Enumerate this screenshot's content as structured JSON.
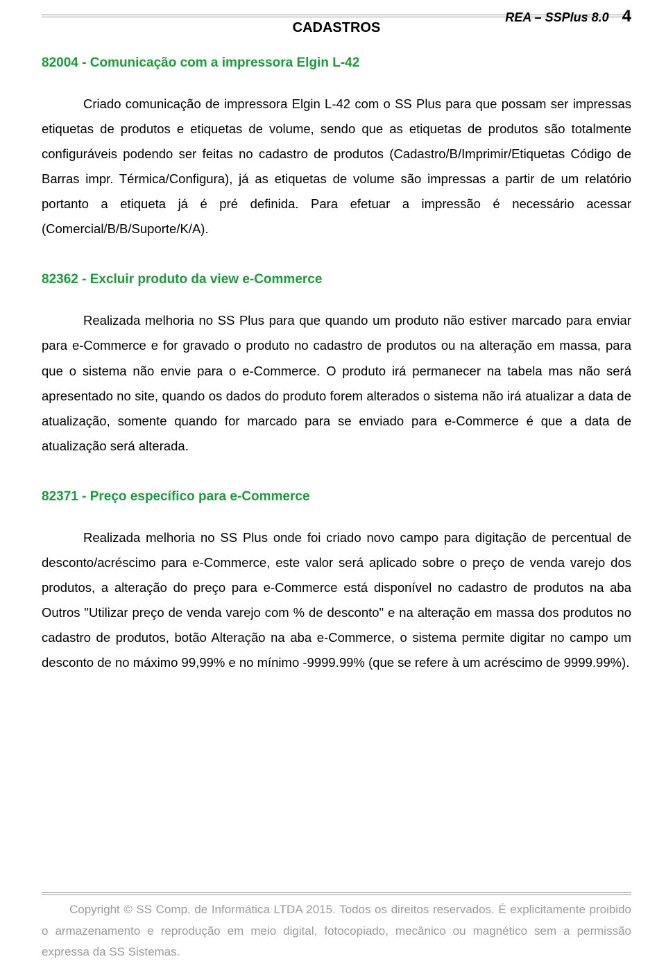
{
  "header": {
    "doc_title": "REA – SSPlus 8.0",
    "page_number": "4"
  },
  "section_title": "CADASTROS",
  "sections": [
    {
      "heading": "82004 - Comunicação com a impressora Elgin L-42",
      "body": "Criado comunicação de impressora Elgin L-42 com o SS Plus para que possam ser impressas etiquetas de produtos e etiquetas de volume, sendo que as etiquetas de produtos são totalmente configuráveis podendo ser feitas no cadastro de produtos (Cadastro/B/Imprimir/Etiquetas Código de Barras impr. Térmica/Configura), já as etiquetas de volume são impressas a partir de um relatório portanto a etiqueta já é pré definida. Para efetuar a impressão é necessário acessar (Comercial/B/B/Suporte/K/A)."
    },
    {
      "heading": "82362 - Excluir produto da view e-Commerce",
      "body": "Realizada melhoria no SS Plus para que quando um produto não estiver marcado para enviar para e-Commerce e for gravado o produto no cadastro de produtos ou na alteração em massa, para que o sistema não envie para o e-Commerce. O produto irá permanecer na tabela mas não será apresentado no site, quando os dados do produto forem alterados o sistema não irá atualizar a data de atualização, somente quando for marcado para se enviado para e-Commerce é que a data de atualização será alterada."
    },
    {
      "heading": "82371 - Preço específico para e-Commerce",
      "body": "Realizada melhoria no SS Plus onde foi criado novo campo para digitação de percentual de desconto/acréscimo para e-Commerce, este valor será aplicado sobre o preço de venda varejo dos produtos, a alteração do preço para e-Commerce está disponível no cadastro de produtos na aba Outros \"Utilizar preço de venda varejo com  % de desconto\" e na alteração em massa dos produtos no cadastro de produtos, botão Alteração na aba e-Commerce, o sistema permite digitar no campo um desconto de no máximo 99,99% e no mínimo -9999.99% (que se refere à um acréscimo de 9999.99%)."
    }
  ],
  "footer": {
    "text": "Copyright © SS Comp. de Informática LTDA 2015. Todos os direitos reservados. É explicitamente proibido o armazenamento e reprodução em meio digital, fotocopiado, mecânico ou magnético sem a permissão expressa da SS Sistemas."
  },
  "colors": {
    "heading_green": "#1a9c38",
    "body_black": "#000000",
    "footer_gray": "#9b9b9b",
    "rule_gray": "#999999",
    "background": "#ffffff"
  },
  "typography": {
    "body_fontsize": 18.5,
    "heading_fontsize": 19,
    "section_title_fontsize": 20,
    "footer_fontsize": 17,
    "line_height": 1.95,
    "font_family": "Arial"
  }
}
